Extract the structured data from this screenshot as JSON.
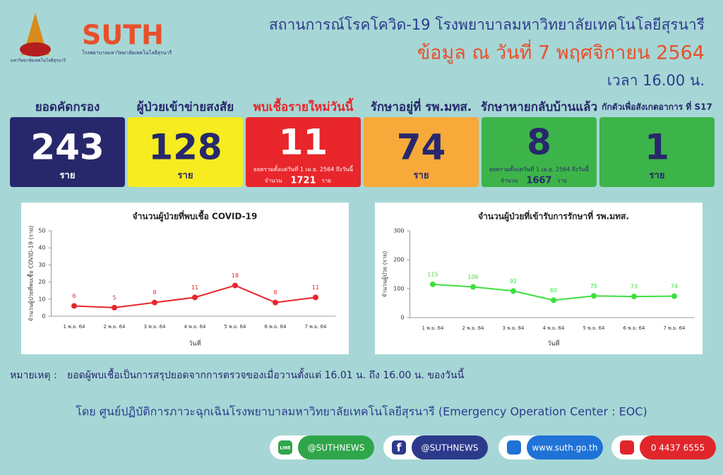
{
  "header": {
    "logo_caption": "มหาวิทยาลัยเทคโนโลยีสุรนารี",
    "brand": "SUTH",
    "brand_sub": "โรงพยาบาลมหาวิทยาลัยเทคโนโลยีสุรนารี",
    "title": "สถานการณ์โรคโควิด-19 โรงพยาบาลมหาวิทยาลัยเทคโนโลยีสุรนารี",
    "date": "ข้อมูล ณ วันที่ 7 พฤศจิกายน 2564",
    "time": "เวลา 16.00 น."
  },
  "cards": [
    {
      "label": "ยอดคัดกรอง",
      "value": 243,
      "unit": "ราย",
      "color": "#27286b",
      "text_color": "#ffffff",
      "label_color": "#27286b"
    },
    {
      "label": "ผู้ป่วยเข้าข่ายสงสัย",
      "value": 128,
      "unit": "ราย",
      "color": "#f6ec1f",
      "text_color": "#27286b",
      "label_color": "#27286b"
    },
    {
      "label": "พบเชื้อรายใหม่วันนี้",
      "value": 11,
      "note": "ยอดรวมตั้งแต่วันที่ 1 เม.ย. 2564 ถึงวันนี้",
      "total_label": "จำนวน",
      "total": 1721,
      "unit": "ราย",
      "color": "#e8262b",
      "text_color": "#ffffff",
      "label_color": "#e8262b"
    },
    {
      "label": "รักษาอยู่ที่ รพ.มทส.",
      "value": 74,
      "unit": "ราย",
      "color": "#f7a93a",
      "text_color": "#27286b",
      "label_color": "#27286b"
    },
    {
      "label": "รักษาหายกลับบ้านแล้ว",
      "value": 8,
      "note": "ยอดรวมตั้งแต่วันที่ 1 เม.ย. 2564 ถึงวันนี้",
      "total_label": "จำนวน",
      "total": 1667,
      "unit": "ราย",
      "color": "#3db449",
      "text_color": "#27286b",
      "label_color": "#27286b"
    },
    {
      "label": "กักตัวเพื่อสังเกตอาการ ที่ S17",
      "value": 1,
      "unit": "ราย",
      "color": "#3db449",
      "text_color": "#27286b",
      "label_color": "#27286b"
    }
  ],
  "chart_data": [
    {
      "type": "line",
      "title": "จำนวนผู้ป่วยที่พบเชื้อ COVID-19",
      "y_label": "จำนวนผู้ป่วยที่พบเชื้อ COVID-19 (ราย)",
      "x_label": "วันที่",
      "categories": [
        "1 พ.ย. 64",
        "2 พ.ย. 64",
        "3 พ.ย. 64",
        "4 พ.ย. 64",
        "5 พ.ย. 64",
        "6 พ.ย. 64",
        "7 พ.ย. 64"
      ],
      "values": [
        6,
        5,
        8,
        11,
        18,
        8,
        11
      ],
      "color": "#e8262b",
      "ylim": [
        0,
        50
      ],
      "yticks": [
        0,
        10,
        20,
        30,
        40,
        50
      ]
    },
    {
      "type": "line",
      "title": "จำนวนผู้ป่วยที่เข้ารับการรักษาที่ รพ.มทส.",
      "y_label": "จำนวนผู้ป่วย (ราย)",
      "x_label": "วันที่",
      "categories": [
        "1 พ.ย. 64",
        "2 พ.ย. 64",
        "3 พ.ย. 64",
        "4 พ.ย. 64",
        "5 พ.ย. 64",
        "6 พ.ย. 64",
        "7 พ.ย. 64"
      ],
      "values": [
        115,
        106,
        92,
        60,
        75,
        73,
        74
      ],
      "color": "#3ee03e",
      "ylim": [
        0,
        300
      ],
      "yticks": [
        0,
        100,
        200,
        300
      ]
    }
  ],
  "footer": {
    "note_label": "หมายเหตุ :",
    "note": "ยอดผู้พบเชื้อเป็นการสรุปยอดจากการตรวจของเมื่อวานตั้งแต่ 16.01 น. ถึง 16.00 น. ของวันนี้",
    "org": "โดย ศูนย์ปฏิบัติการภาวะฉุกเฉินโรงพยาบาลมหาวิทยาลัยเทคโนโลยีสุรนารี (Emergency Operation  Center : EOC)",
    "contacts": [
      {
        "icon": "LINE",
        "text": "@SUTHNEWS",
        "color": "#2fa64a"
      },
      {
        "icon": "f",
        "text": "@SUTHNEWS",
        "color": "#2d3a8c"
      },
      {
        "text": "www.suth.go.th",
        "color": "#1f72d6"
      },
      {
        "text": "0 4437 6555",
        "color": "#e0262b"
      }
    ]
  }
}
